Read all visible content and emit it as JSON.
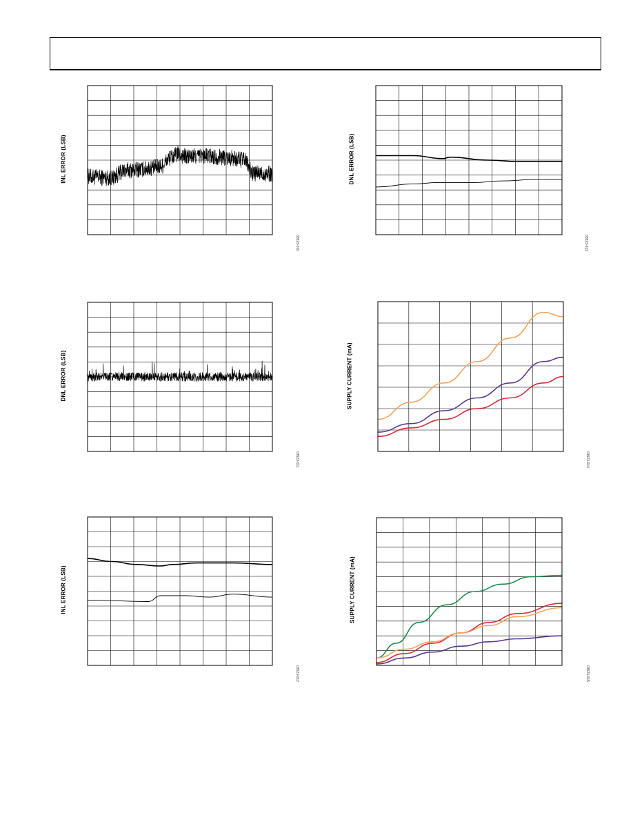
{
  "header": {
    "title": ""
  },
  "charts": [
    {
      "id": "inl-vs-code",
      "ylabel": "INL ERROR (LSB)",
      "fig_code": "03523-010",
      "chart_data": {
        "type": "line",
        "title": "",
        "xlabel": "",
        "ylabel": "INL ERROR (LSB)",
        "xlim": [
          0,
          8.2
        ],
        "ylim": [
          -5,
          5
        ],
        "x_divisions": 8,
        "y_divisions": 10,
        "grid": true,
        "series": [
          {
            "color": "#000000",
            "noise": 0.55,
            "points": [
              [
                0,
                -1.1
              ],
              [
                1.1,
                -1.2
              ],
              [
                1.6,
                -0.7
              ],
              [
                2.5,
                -0.6
              ],
              [
                3.3,
                -0.4
              ],
              [
                3.6,
                0.1
              ],
              [
                4.0,
                0.4
              ],
              [
                4.4,
                0.2
              ],
              [
                5.0,
                0.3
              ],
              [
                6.0,
                0.2
              ],
              [
                7.0,
                0.0
              ],
              [
                7.3,
                -0.9
              ],
              [
                8.2,
                -0.9
              ]
            ]
          }
        ]
      }
    },
    {
      "id": "dnl-vs-temperature",
      "ylabel": "DNL ERROR (LSB)",
      "fig_code": "03523-013",
      "chart_data": {
        "type": "line",
        "title": "",
        "xlabel": "",
        "ylabel": "DNL ERROR (LSB)",
        "xlim": [
          0,
          7.5
        ],
        "ylim": [
          -5,
          5
        ],
        "x_divisions": 8,
        "y_divisions": 10,
        "grid": true,
        "series": [
          {
            "color": "#000000",
            "width": 1.6,
            "points": [
              [
                0,
                0.3
              ],
              [
                1.5,
                0.3
              ],
              [
                2.7,
                0.1
              ],
              [
                3.0,
                0.2
              ],
              [
                4.5,
                0.0
              ],
              [
                5.8,
                -0.1
              ],
              [
                7.5,
                -0.1
              ]
            ]
          },
          {
            "color": "#000000",
            "width": 0.9,
            "points": [
              [
                0,
                -1.8
              ],
              [
                1.5,
                -1.6
              ],
              [
                2.5,
                -1.5
              ],
              [
                4.0,
                -1.5
              ],
              [
                5.0,
                -1.4
              ],
              [
                6.5,
                -1.3
              ],
              [
                7.5,
                -1.3
              ]
            ]
          }
        ]
      }
    },
    {
      "id": "dnl-vs-code",
      "ylabel": "DNL ERROR (LSB)",
      "fig_code": "03523-011",
      "chart_data": {
        "type": "line",
        "title": "",
        "xlabel": "",
        "ylabel": "DNL ERROR (LSB)",
        "xlim": [
          0,
          8.2
        ],
        "ylim": [
          -5,
          5
        ],
        "x_divisions": 8,
        "y_divisions": 10,
        "grid": true,
        "series": [
          {
            "color": "#000000",
            "noise": 0.3,
            "points": [
              [
                0,
                0.0
              ],
              [
                8.2,
                0.0
              ]
            ]
          }
        ]
      }
    },
    {
      "id": "supply-current-vs-temperature",
      "ylabel": "SUPPLY CURRENT (mA)",
      "fig_code": "03523-014",
      "chart_data": {
        "type": "line",
        "title": "",
        "xlabel": "",
        "ylabel": "SUPPLY CURRENT (mA)",
        "xlim": [
          0,
          5.6
        ],
        "ylim": [
          0,
          7
        ],
        "x_divisions": 6,
        "y_divisions": 7,
        "grid": true,
        "series": [
          {
            "color": "#f5a25a",
            "width": 1.6,
            "points": [
              [
                0,
                1.5
              ],
              [
                1,
                2.3
              ],
              [
                2,
                3.2
              ],
              [
                3,
                4.2
              ],
              [
                4,
                5.3
              ],
              [
                5,
                6.5
              ],
              [
                5.6,
                6.3
              ]
            ]
          },
          {
            "color": "#5a3a92",
            "width": 1.6,
            "points": [
              [
                0,
                0.9
              ],
              [
                1,
                1.3
              ],
              [
                2,
                1.9
              ],
              [
                3,
                2.5
              ],
              [
                4,
                3.2
              ],
              [
                5,
                4.2
              ],
              [
                5.6,
                4.4
              ]
            ]
          },
          {
            "color": "#d42a3a",
            "width": 1.6,
            "points": [
              [
                0,
                0.7
              ],
              [
                1,
                1.1
              ],
              [
                2,
                1.5
              ],
              [
                3,
                2.0
              ],
              [
                4,
                2.5
              ],
              [
                5,
                3.2
              ],
              [
                5.6,
                3.5
              ]
            ]
          }
        ]
      }
    },
    {
      "id": "inl-vs-temperature",
      "ylabel": "INL ERROR (LSB)",
      "fig_code": "03523-012",
      "chart_data": {
        "type": "line",
        "title": "",
        "xlabel": "",
        "ylabel": "INL ERROR (LSB)",
        "xlim": [
          0,
          7.6
        ],
        "ylim": [
          -5,
          5
        ],
        "x_divisions": 8,
        "y_divisions": 10,
        "grid": true,
        "series": [
          {
            "color": "#000000",
            "width": 1.6,
            "points": [
              [
                0,
                2.2
              ],
              [
                1,
                2.0
              ],
              [
                2,
                1.8
              ],
              [
                3,
                1.7
              ],
              [
                3.5,
                1.8
              ],
              [
                4.5,
                1.9
              ],
              [
                6,
                1.9
              ],
              [
                7.6,
                1.8
              ]
            ]
          },
          {
            "color": "#000000",
            "width": 0.9,
            "points": [
              [
                0,
                -0.6
              ],
              [
                2.5,
                -0.7
              ],
              [
                3,
                -0.3
              ],
              [
                4,
                -0.3
              ],
              [
                5,
                -0.4
              ],
              [
                6,
                -0.2
              ],
              [
                7.6,
                -0.4
              ]
            ]
          }
        ]
      }
    },
    {
      "id": "supply-current-vs-voltage",
      "ylabel": "SUPPLY CURRENT (mA)",
      "fig_code": "03523-015",
      "chart_data": {
        "type": "line",
        "title": "",
        "xlabel": "",
        "ylabel": "SUPPLY CURRENT (mA)",
        "xlim": [
          0,
          6.6
        ],
        "ylim": [
          0,
          10
        ],
        "x_divisions": 7,
        "y_divisions": 10,
        "grid": true,
        "series": [
          {
            "color": "#1e8a4e",
            "width": 1.6,
            "points": [
              [
                0,
                0.5
              ],
              [
                0.7,
                1.5
              ],
              [
                1.5,
                2.9
              ],
              [
                2.5,
                4.1
              ],
              [
                3.5,
                5.0
              ],
              [
                4.5,
                5.5
              ],
              [
                5.5,
                6.0
              ],
              [
                6.6,
                6.1
              ]
            ]
          },
          {
            "color": "#d42a3a",
            "width": 1.6,
            "points": [
              [
                0,
                0.2
              ],
              [
                1,
                0.8
              ],
              [
                2,
                1.5
              ],
              [
                3,
                2.2
              ],
              [
                4,
                2.9
              ],
              [
                5,
                3.5
              ],
              [
                6.6,
                4.2
              ]
            ]
          },
          {
            "color": "#f5a25a",
            "width": 1.6,
            "points": [
              [
                0,
                0.5
              ],
              [
                1,
                1.1
              ],
              [
                2,
                1.6
              ],
              [
                3,
                2.2
              ],
              [
                4,
                2.7
              ],
              [
                5,
                3.3
              ],
              [
                6.6,
                3.9
              ]
            ]
          },
          {
            "color": "#5a3a92",
            "width": 1.6,
            "points": [
              [
                0,
                0.1
              ],
              [
                1,
                0.5
              ],
              [
                2,
                0.9
              ],
              [
                3,
                1.3
              ],
              [
                4,
                1.6
              ],
              [
                5,
                1.8
              ],
              [
                6.6,
                2.0
              ]
            ]
          }
        ]
      }
    }
  ]
}
